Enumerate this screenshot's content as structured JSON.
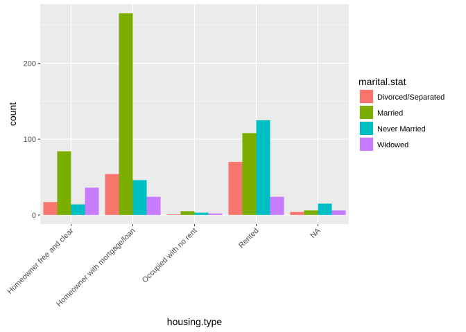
{
  "chart_data": {
    "type": "bar",
    "xlabel": "housing.type",
    "ylabel": "count",
    "legend_title": "marital.stat",
    "legend_position": "right",
    "grid": true,
    "ylim": [
      -12,
      278
    ],
    "yticks": [
      0,
      100,
      200
    ],
    "categories": [
      "Homeowner free and clear",
      "Homeowner with mortgage/loan",
      "Occupied with no rent",
      "Rented",
      "NA"
    ],
    "series": [
      {
        "name": "Divorced/Separated",
        "color": "#F8766D",
        "values": [
          17,
          54,
          1,
          70,
          4
        ]
      },
      {
        "name": "Married",
        "color": "#7CAE00",
        "values": [
          84,
          266,
          5,
          108,
          6
        ]
      },
      {
        "name": "Never Married",
        "color": "#00BFC4",
        "values": [
          14,
          46,
          3,
          125,
          15
        ]
      },
      {
        "name": "Widowed",
        "color": "#C77CFF",
        "values": [
          36,
          24,
          2,
          24,
          6
        ]
      }
    ]
  },
  "colors": {
    "panel_background": "#EBEBEB",
    "grid_major": "#FFFFFF",
    "tick_text": "#4D4D4D"
  }
}
